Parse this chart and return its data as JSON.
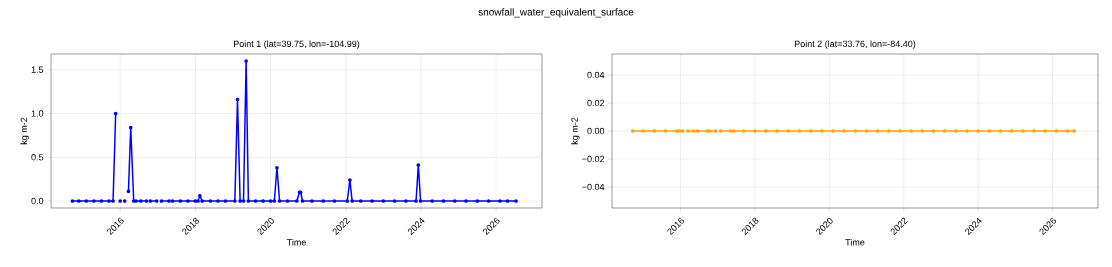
{
  "chart_data": [
    {
      "type": "line",
      "title": "Point 1 (lat=39.75, lon=-104.99)",
      "xlabel": "Time",
      "ylabel": "kg m-2",
      "annotations": [
        "snowfall_water_equivalent_surface"
      ],
      "xlim": [
        2014.16,
        2027.22
      ],
      "ylim": [
        -0.08,
        1.68
      ],
      "xticks": [
        2016,
        2018,
        2020,
        2022,
        2024,
        2026
      ],
      "yticks": [
        {
          "value": 0,
          "label": "0.0"
        },
        {
          "value": 0.5,
          "label": "0.5"
        },
        {
          "value": 1,
          "label": "1.0"
        },
        {
          "value": 1.5,
          "label": "1.5"
        }
      ],
      "grid": true,
      "marker": "circle",
      "line_style": "solid",
      "series": [
        {
          "color": "#0000ff",
          "x": [
            2014.73,
            2014.9,
            2015.1,
            2015.3,
            2015.5,
            2015.7,
            2015.81,
            2015.88,
            2015.94,
            2016.0,
            2016.06,
            2016.12,
            2016.17,
            2016.22,
            2016.28,
            2016.36,
            2016.42,
            2016.55,
            2016.7,
            2016.75,
            2016.8,
            2016.97,
            2017.03,
            2017.1,
            2017.3,
            2017.35,
            2017.39,
            2017.6,
            2017.8,
            2018.0,
            2018.07,
            2018.12,
            2018.18,
            2018.4,
            2018.6,
            2018.8,
            2019.05,
            2019.12,
            2019.19,
            2019.28,
            2019.35,
            2019.41,
            2019.6,
            2019.8,
            2020.0,
            2020.1,
            2020.17,
            2020.24,
            2020.45,
            2020.7,
            2020.77,
            2020.8,
            2020.85,
            2021.1,
            2021.4,
            2021.7,
            2022.04,
            2022.11,
            2022.17,
            2022.4,
            2022.7,
            2023.0,
            2023.3,
            2023.6,
            2023.87,
            2023.93,
            2023.99,
            2024.3,
            2024.6,
            2024.9,
            2025.2,
            2025.5,
            2025.8,
            2026.1,
            2026.3,
            2026.53
          ],
          "values": [
            0,
            0,
            0,
            0,
            0,
            0,
            0,
            1.0,
            null,
            0,
            null,
            0,
            null,
            0.11,
            0.84,
            0,
            0,
            0,
            0,
            null,
            0,
            0,
            null,
            0,
            0,
            null,
            0,
            0,
            0,
            0,
            0,
            0.06,
            0,
            0,
            0,
            0,
            0,
            1.16,
            0,
            0,
            1.6,
            0,
            0,
            0,
            0,
            0,
            0.38,
            0,
            0,
            0,
            0.1,
            0.1,
            0,
            0,
            0,
            0,
            0,
            0.24,
            0,
            0,
            0,
            0,
            0,
            0,
            0,
            0.41,
            0,
            0,
            0,
            0,
            0,
            0,
            0,
            0,
            0,
            0
          ]
        }
      ]
    },
    {
      "type": "line",
      "title": "Point 2 (lat=33.76, lon=-84.40)",
      "xlabel": "Time",
      "ylabel": "kg m-2",
      "xlim": [
        2014.16,
        2027.22
      ],
      "ylim": [
        -0.055,
        0.055
      ],
      "xticks": [
        2016,
        2018,
        2020,
        2022,
        2024,
        2026
      ],
      "yticks": [
        {
          "value": -0.04,
          "label": "−0.04"
        },
        {
          "value": -0.02,
          "label": "−0.02"
        },
        {
          "value": 0,
          "label": "0.00"
        },
        {
          "value": 0.02,
          "label": "0.02"
        },
        {
          "value": 0.04,
          "label": "0.04"
        }
      ],
      "grid": true,
      "marker": "circle",
      "line_style": "solid",
      "series": [
        {
          "color": "#ffa500",
          "x": [
            2014.72,
            2015.0,
            2015.3,
            2015.6,
            2015.9,
            2015.93,
            2015.97,
            2016.01,
            2016.06,
            2016.11,
            2016.2,
            2016.36,
            2016.42,
            2016.46,
            2016.72,
            2016.76,
            2016.79,
            2016.95,
            2017.02,
            2017.08,
            2017.35,
            2017.39,
            2017.43,
            2017.7,
            2018.0,
            2018.3,
            2018.6,
            2018.9,
            2019.2,
            2019.5,
            2019.8,
            2020.1,
            2020.4,
            2020.7,
            2021.0,
            2021.3,
            2021.6,
            2021.9,
            2022.2,
            2022.5,
            2022.8,
            2023.1,
            2023.4,
            2023.7,
            2024.0,
            2024.3,
            2024.6,
            2024.9,
            2025.2,
            2025.5,
            2025.8,
            2026.1,
            2026.4,
            2026.58
          ],
          "values": [
            0,
            0,
            0,
            0,
            0,
            null,
            0,
            null,
            0,
            null,
            0,
            0,
            null,
            0,
            0,
            null,
            0,
            0,
            null,
            0,
            0,
            null,
            0,
            0,
            0,
            0,
            0,
            0,
            0,
            0,
            0,
            0,
            0,
            0,
            0,
            0,
            0,
            0,
            0,
            0,
            0,
            0,
            0,
            0,
            0,
            0,
            0,
            0,
            0,
            0,
            0,
            0,
            0,
            0
          ]
        }
      ]
    }
  ]
}
